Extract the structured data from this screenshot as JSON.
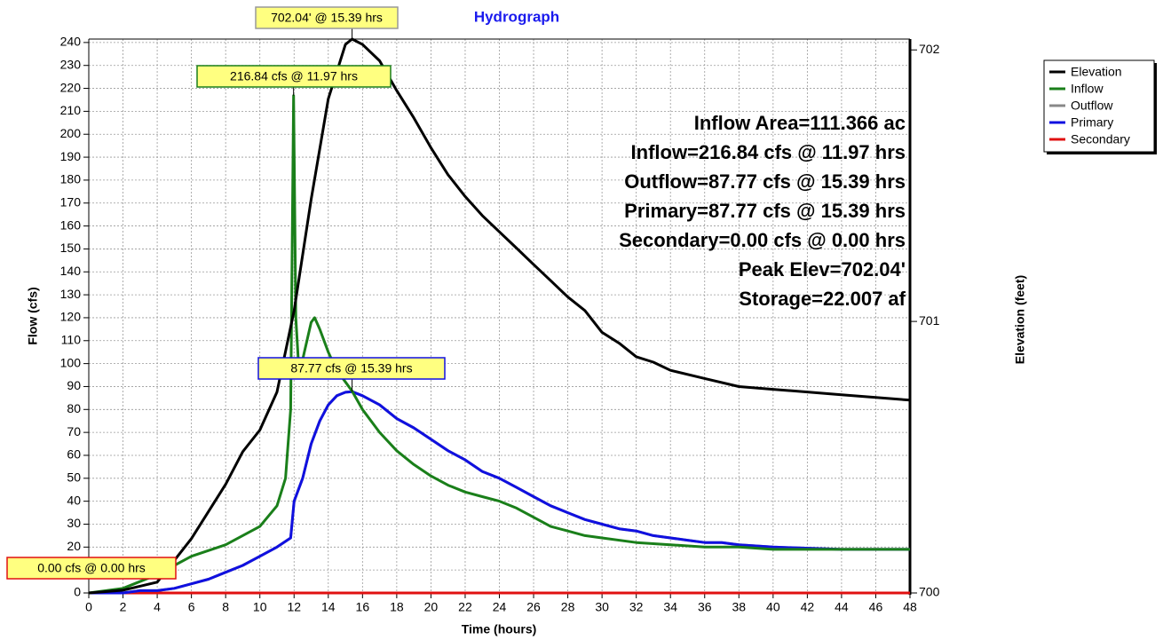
{
  "chart_data": {
    "type": "line",
    "title": "Hydrograph",
    "x_label": "Time  (hours)",
    "y_label": "Flow  (cfs)",
    "y2_label": "Elevation (feet)",
    "xlim": [
      0,
      48
    ],
    "xticks": [
      0,
      2,
      4,
      6,
      8,
      10,
      12,
      14,
      16,
      18,
      20,
      22,
      24,
      26,
      28,
      30,
      32,
      34,
      36,
      38,
      40,
      42,
      44,
      46,
      48
    ],
    "ylim": [
      0,
      241.5
    ],
    "yticks": [
      0,
      10,
      20,
      30,
      40,
      50,
      60,
      70,
      80,
      90,
      100,
      110,
      120,
      130,
      140,
      150,
      160,
      170,
      180,
      190,
      200,
      210,
      220,
      230,
      240
    ],
    "y2lim": [
      700,
      702.04
    ],
    "y2ticks": [
      700,
      701,
      702
    ],
    "grid": true,
    "legend": "top-right",
    "series": [
      {
        "name": "Elevation",
        "color": "#000000",
        "axis": "y2",
        "x": [
          0,
          2,
          4,
          5,
          6,
          7,
          8,
          9,
          10,
          11,
          12,
          13,
          14,
          15,
          15.39,
          16,
          17,
          18,
          19,
          20,
          21,
          22,
          23,
          24,
          25,
          26,
          27,
          28,
          29,
          30,
          31,
          32,
          33,
          34,
          36,
          38,
          40,
          42,
          44,
          46,
          48
        ],
        "values": [
          700.0,
          700.01,
          700.04,
          700.12,
          700.2,
          700.3,
          700.4,
          700.52,
          700.6,
          700.74,
          701.04,
          701.45,
          701.82,
          702.02,
          702.04,
          702.02,
          701.96,
          701.85,
          701.75,
          701.64,
          701.54,
          701.46,
          701.39,
          701.33,
          701.27,
          701.21,
          701.15,
          701.09,
          701.04,
          700.96,
          700.92,
          700.87,
          700.85,
          700.82,
          700.79,
          700.76,
          700.75,
          700.74,
          700.73,
          700.72,
          700.71
        ]
      },
      {
        "name": "Inflow",
        "color": "#1a7f1a",
        "x": [
          0,
          2,
          4,
          5,
          6,
          8,
          10,
          11,
          11.5,
          11.8,
          11.97,
          12.1,
          12.3,
          12.6,
          13,
          13.2,
          13.5,
          14,
          14.5,
          15,
          15.39,
          16,
          17,
          18,
          19,
          20,
          21,
          22,
          23,
          24,
          25,
          26,
          27,
          28,
          29,
          30,
          32,
          34,
          36,
          38,
          40,
          44,
          48
        ],
        "values": [
          0,
          2,
          8,
          12,
          16,
          21,
          29,
          38,
          50,
          80,
          216.84,
          120,
          95,
          105,
          118,
          120,
          115,
          105,
          97,
          92,
          88,
          80,
          70,
          62,
          56,
          51,
          47,
          44,
          42,
          40,
          37,
          33,
          29,
          27,
          25,
          24,
          22,
          21,
          20,
          20,
          19,
          19,
          19
        ]
      },
      {
        "name": "Outflow",
        "color": "#888888",
        "x": [
          0,
          2,
          3,
          4,
          5,
          6,
          7,
          8,
          9,
          10,
          11,
          11.8,
          12,
          12.5,
          13,
          13.5,
          14,
          14.5,
          15,
          15.39,
          16,
          17,
          18,
          19,
          20,
          21,
          22,
          23,
          24,
          25,
          26,
          27,
          28,
          29,
          30,
          31,
          32,
          33,
          34,
          35,
          36,
          37,
          38,
          40,
          44,
          48
        ],
        "values": [
          0,
          0,
          1,
          1,
          2,
          4,
          6,
          9,
          12,
          16,
          20,
          24,
          40,
          50,
          65,
          75,
          82,
          86,
          87.5,
          87.77,
          86,
          82,
          76,
          72,
          67,
          62,
          58,
          53,
          50,
          46,
          42,
          38,
          35,
          32,
          30,
          28,
          27,
          25,
          24,
          23,
          22,
          22,
          21,
          20,
          19,
          19
        ]
      },
      {
        "name": "Primary",
        "color": "#1010e0",
        "x": [
          0,
          2,
          3,
          4,
          5,
          6,
          7,
          8,
          9,
          10,
          11,
          11.8,
          12,
          12.5,
          13,
          13.5,
          14,
          14.5,
          15,
          15.39,
          16,
          17,
          18,
          19,
          20,
          21,
          22,
          23,
          24,
          25,
          26,
          27,
          28,
          29,
          30,
          31,
          32,
          33,
          34,
          35,
          36,
          37,
          38,
          40,
          44,
          48
        ],
        "values": [
          0,
          0,
          1,
          1,
          2,
          4,
          6,
          9,
          12,
          16,
          20,
          24,
          40,
          50,
          65,
          75,
          82,
          86,
          87.5,
          87.77,
          86,
          82,
          76,
          72,
          67,
          62,
          58,
          53,
          50,
          46,
          42,
          38,
          35,
          32,
          30,
          28,
          27,
          25,
          24,
          23,
          22,
          22,
          21,
          20,
          19,
          19
        ]
      },
      {
        "name": "Secondary",
        "color": "#e01010",
        "x": [
          0,
          48
        ],
        "values": [
          0,
          0
        ]
      }
    ],
    "annotations": [
      "702.04' @ 15.39 hrs",
      "216.84 cfs @ 11.97 hrs",
      "87.77 cfs @ 15.39 hrs",
      "0.00 cfs @ 0.00 hrs"
    ],
    "stats": [
      "Inflow Area=111.366 ac",
      "Inflow=216.84 cfs @ 11.97 hrs",
      "Outflow=87.77 cfs @ 15.39 hrs",
      "Primary=87.77 cfs @ 15.39 hrs",
      "Secondary=0.00 cfs @ 0.00 hrs",
      "Peak Elev=702.04'",
      "Storage=22.007 af"
    ]
  }
}
